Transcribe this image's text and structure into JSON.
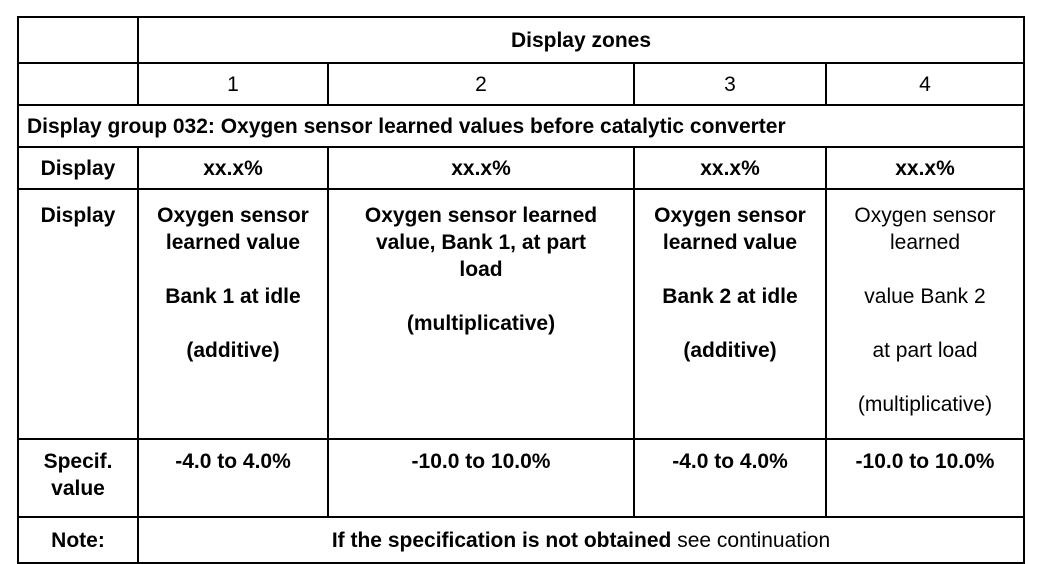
{
  "header": {
    "display_zones": "Display zones"
  },
  "zones": [
    "1",
    "2",
    "3",
    "4"
  ],
  "group_title": "Display group 032: Oxygen sensor learned values before catalytic converter",
  "row_display": {
    "label": "Display",
    "values": [
      "xx.x%",
      "xx.x%",
      "xx.x%",
      "xx.x%"
    ]
  },
  "row_description": {
    "label": "Display",
    "zone1": {
      "line1": "Oxygen sensor",
      "line2": "learned value",
      "line3": "Bank 1 at idle",
      "line4": "(additive)"
    },
    "zone2": {
      "line1": "Oxygen sensor learned",
      "line2": "value, Bank 1, at part",
      "line3": "load",
      "line4": "(multiplicative)"
    },
    "zone3": {
      "line1": "Oxygen sensor",
      "line2": "learned value",
      "line3": "Bank 2 at idle",
      "line4": "(additive)"
    },
    "zone4": {
      "line1": "Oxygen sensor",
      "line2": "learned",
      "line3": "value Bank 2",
      "line4": "at part load",
      "line5": "(multiplicative)"
    }
  },
  "row_spec": {
    "label_line1": "Specif.",
    "label_line2": "value",
    "values": [
      "-4.0 to 4.0%",
      "-10.0 to 10.0%",
      "-4.0 to 4.0%",
      "-10.0 to 10.0%"
    ]
  },
  "row_note": {
    "label": "Note:",
    "text_bold": "If the specification is not obtained",
    "text_normal": "see continuation"
  }
}
